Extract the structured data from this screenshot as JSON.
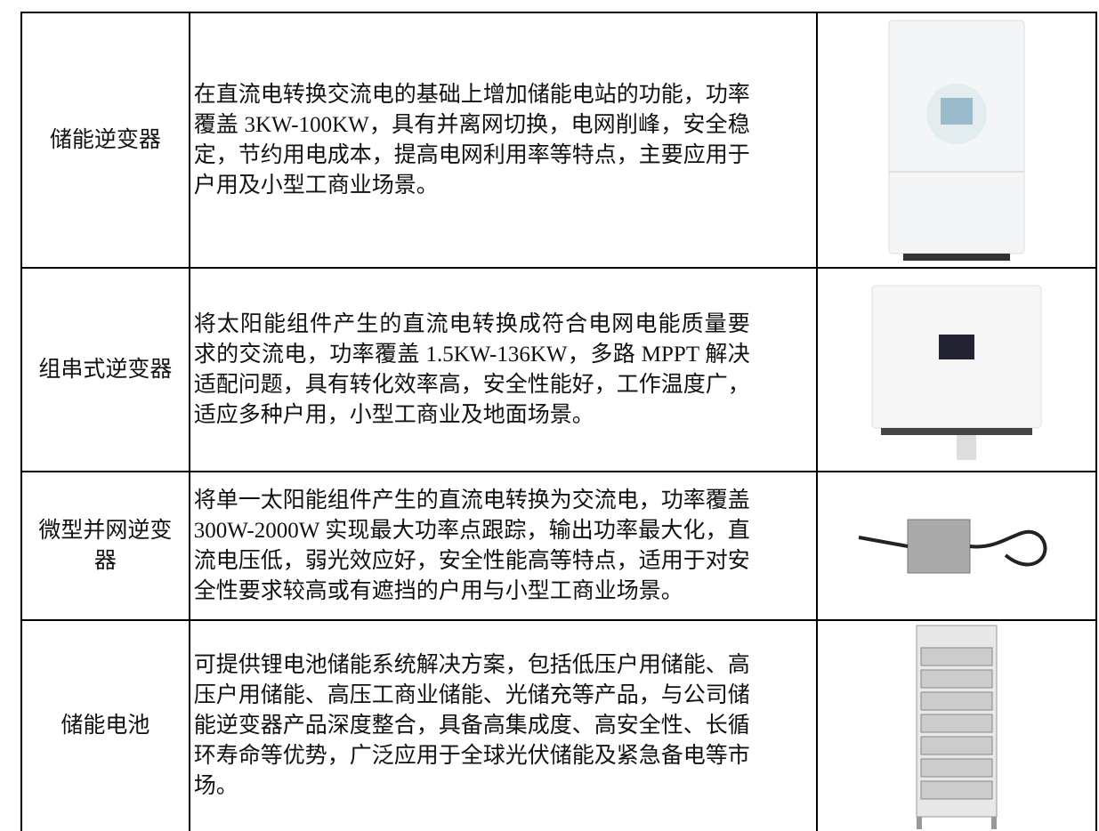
{
  "table": {
    "rows": [
      {
        "name": "储能逆变器",
        "description": [
          "在直流电转换交流电的基础上增加储能电站的功能，功率",
          "覆盖 3KW-100KW，具有并离网切换，电网削峰，安全稳",
          "定，节约用电成本，提高电网利用率等特点，主要应用于",
          "户用及小型工商业场景。"
        ]
      },
      {
        "name": "组串式逆变器",
        "description": [
          "将太阳能组件产生的直流电转换成符合电网电能质量要",
          "求的交流电，功率覆盖 1.5KW-136KW，多路 MPPT 解决",
          "适配问题，具有转化效率高，安全性能好，工作温度广，",
          "适应多种户用，小型工商业及地面场景。"
        ]
      },
      {
        "name": "微型并网逆变器",
        "description": [
          "将单一太阳能组件产生的直流电转换为交流电，功率覆盖",
          "300W-2000W 实现最大功率点跟踪，输出功率最大化，直",
          "流电压低，弱光效应好，安全性能高等特点，适用于对安",
          "全性要求较高或有遮挡的户用与小型工商业场景。"
        ]
      },
      {
        "name": "储能电池",
        "description": [
          "可提供锂电池储能系统解决方案，包括低压户用储能、高",
          "压户用储能、高压工商业储能、光储充等产品，与公司储",
          "能逆变器产品深度整合，具备高集成度、高安全性、长循",
          "环寿命等优势，广泛应用于全球光伏储能及紧急备电等市",
          "场。"
        ]
      }
    ]
  }
}
